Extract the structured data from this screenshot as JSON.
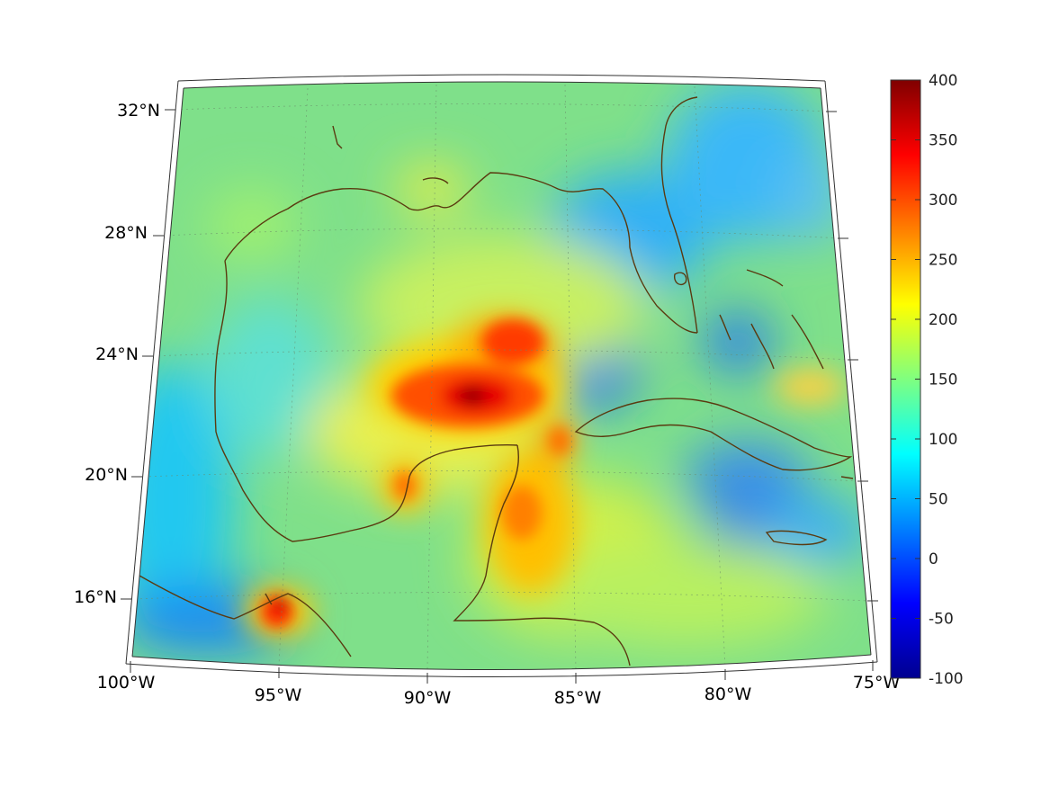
{
  "map": {
    "lon_labels": [
      "100°W",
      "95°W",
      "90°W",
      "85°W",
      "80°W",
      "75°W"
    ],
    "lat_labels": [
      "16°N",
      "20°N",
      "24°N",
      "28°N",
      "32°N"
    ],
    "colorbar": {
      "ticks": [
        "400",
        "350",
        "300",
        "250",
        "200",
        "150",
        "100",
        "50",
        "0",
        "-50",
        "-100"
      ],
      "min": -100,
      "max": 400,
      "colormap": "jet"
    },
    "colors": {
      "coastline": "#5a3a10",
      "background_field": "#7fe08a"
    }
  }
}
